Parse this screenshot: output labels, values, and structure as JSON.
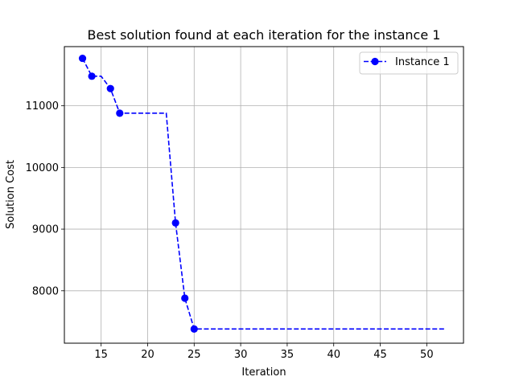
{
  "chart_data": {
    "type": "line",
    "title": "Best solution found at each iteration for the instance 1",
    "xlabel": "Iteration",
    "ylabel": "Solution Cost",
    "xlim": [
      11.05,
      53.95
    ],
    "ylim": [
      7150,
      11960
    ],
    "xticks": [
      15,
      20,
      25,
      30,
      35,
      40,
      45,
      50
    ],
    "yticks": [
      8000,
      9000,
      10000,
      11000
    ],
    "grid": true,
    "legend_position": "top-right",
    "series": [
      {
        "name": "Instance 1",
        "color": "#0000ff",
        "line_style": "dashed",
        "marker": "circle",
        "line_points": [
          [
            13,
            11770
          ],
          [
            14,
            11480
          ],
          [
            15,
            11480
          ],
          [
            16,
            11280
          ],
          [
            17,
            10880
          ],
          [
            18,
            10880
          ],
          [
            19,
            10880
          ],
          [
            20,
            10880
          ],
          [
            21,
            10880
          ],
          [
            22,
            10880
          ],
          [
            23,
            9100
          ],
          [
            24,
            7880
          ],
          [
            25,
            7380
          ],
          [
            26,
            7380
          ],
          [
            27,
            7380
          ],
          [
            28,
            7380
          ],
          [
            29,
            7380
          ],
          [
            30,
            7380
          ],
          [
            31,
            7380
          ],
          [
            32,
            7380
          ],
          [
            33,
            7380
          ],
          [
            34,
            7380
          ],
          [
            35,
            7380
          ],
          [
            36,
            7380
          ],
          [
            37,
            7380
          ],
          [
            38,
            7380
          ],
          [
            39,
            7380
          ],
          [
            40,
            7380
          ],
          [
            41,
            7380
          ],
          [
            42,
            7380
          ],
          [
            43,
            7380
          ],
          [
            44,
            7380
          ],
          [
            45,
            7380
          ],
          [
            46,
            7380
          ],
          [
            47,
            7380
          ],
          [
            48,
            7380
          ],
          [
            49,
            7380
          ],
          [
            50,
            7380
          ],
          [
            51,
            7380
          ],
          [
            52,
            7380
          ]
        ],
        "markers": [
          [
            13,
            11770
          ],
          [
            14,
            11480
          ],
          [
            16,
            11280
          ],
          [
            17,
            10880
          ],
          [
            23,
            9100
          ],
          [
            24,
            7880
          ],
          [
            25,
            7380
          ]
        ]
      }
    ]
  }
}
